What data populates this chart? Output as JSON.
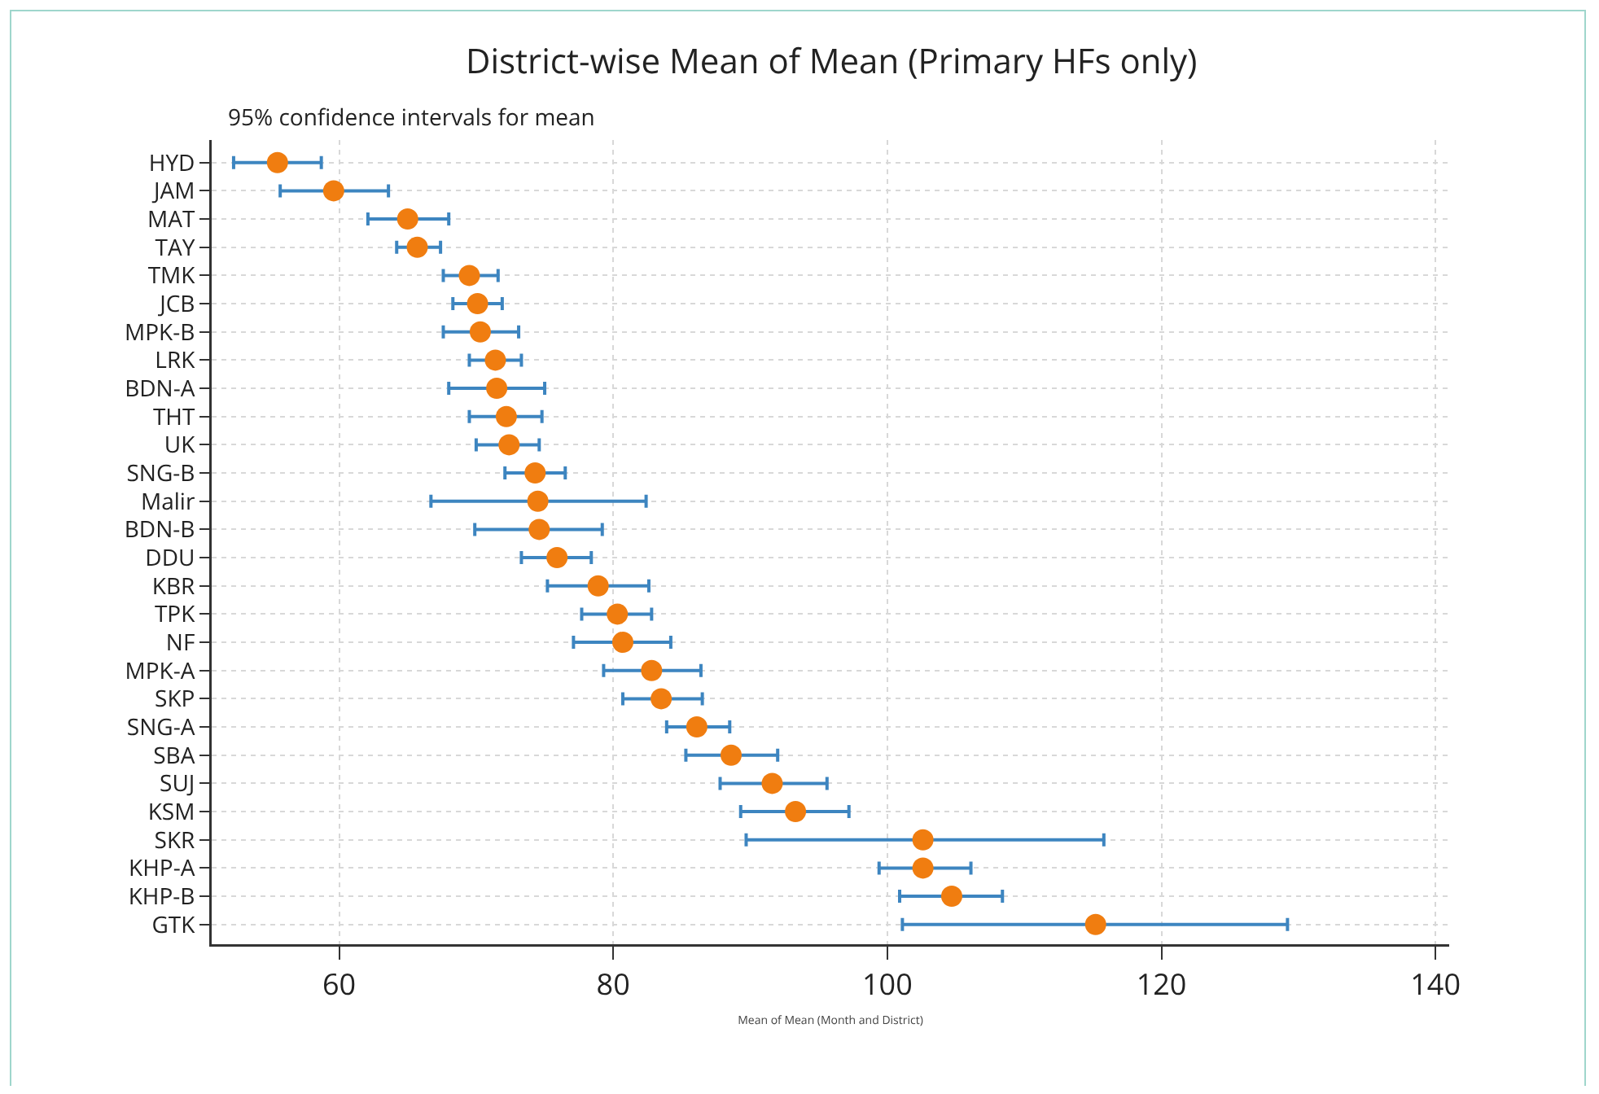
{
  "chart_data": {
    "type": "scatter",
    "title": "District-wise Mean of Mean (Primary HFs only)",
    "subtitle": "95% confidence intervals for mean",
    "xlabel": "Mean of Mean (Month and District)",
    "orientation": "horizontal",
    "categories": [
      "HYD",
      "JAM",
      "MAT",
      "TAY",
      "TMK",
      "JCB",
      "MPK-B",
      "LRK",
      "BDN-A",
      "THT",
      "UK",
      "SNG-B",
      "Malir",
      "BDN-B",
      "DDU",
      "KBR",
      "TPK",
      "NF",
      "MPK-A",
      "SKP",
      "SNG-A",
      "SBA",
      "SUJ",
      "KSM",
      "SKR",
      "KHP-A",
      "KHP-B",
      "GTK"
    ],
    "series": [
      {
        "color": "#f07d10",
        "values": [
          55.5,
          59.6,
          65.0,
          65.7,
          69.5,
          70.1,
          70.3,
          71.4,
          71.5,
          72.2,
          72.4,
          74.3,
          74.5,
          74.6,
          75.9,
          78.9,
          80.3,
          80.7,
          82.8,
          83.5,
          86.1,
          88.6,
          91.6,
          93.3,
          102.6,
          102.6,
          104.7,
          115.2
        ],
        "errors": [
          [
            52.3,
            58.7
          ],
          [
            55.7,
            63.6
          ],
          [
            62.1,
            68.0
          ],
          [
            64.2,
            67.4
          ],
          [
            67.6,
            71.6
          ],
          [
            68.3,
            71.9
          ],
          [
            67.6,
            73.1
          ],
          [
            69.5,
            73.3
          ],
          [
            68.0,
            75.0
          ],
          [
            69.5,
            74.8
          ],
          [
            70.0,
            74.6
          ],
          [
            72.1,
            76.5
          ],
          [
            66.7,
            82.4
          ],
          [
            69.9,
            79.2
          ],
          [
            73.3,
            78.4
          ],
          [
            75.2,
            82.6
          ],
          [
            77.7,
            82.8
          ],
          [
            77.1,
            84.2
          ],
          [
            79.3,
            86.4
          ],
          [
            80.7,
            86.5
          ],
          [
            83.9,
            88.5
          ],
          [
            85.3,
            92.0
          ],
          [
            87.8,
            95.6
          ],
          [
            89.3,
            97.2
          ],
          [
            89.7,
            115.8
          ],
          [
            99.4,
            106.1
          ],
          [
            100.9,
            108.4
          ],
          [
            101.1,
            129.2
          ]
        ]
      }
    ],
    "xlim": [
      50.7,
      141
    ],
    "xticks": [
      60,
      80,
      100,
      120,
      140
    ],
    "grid": true,
    "marker": "circle"
  }
}
